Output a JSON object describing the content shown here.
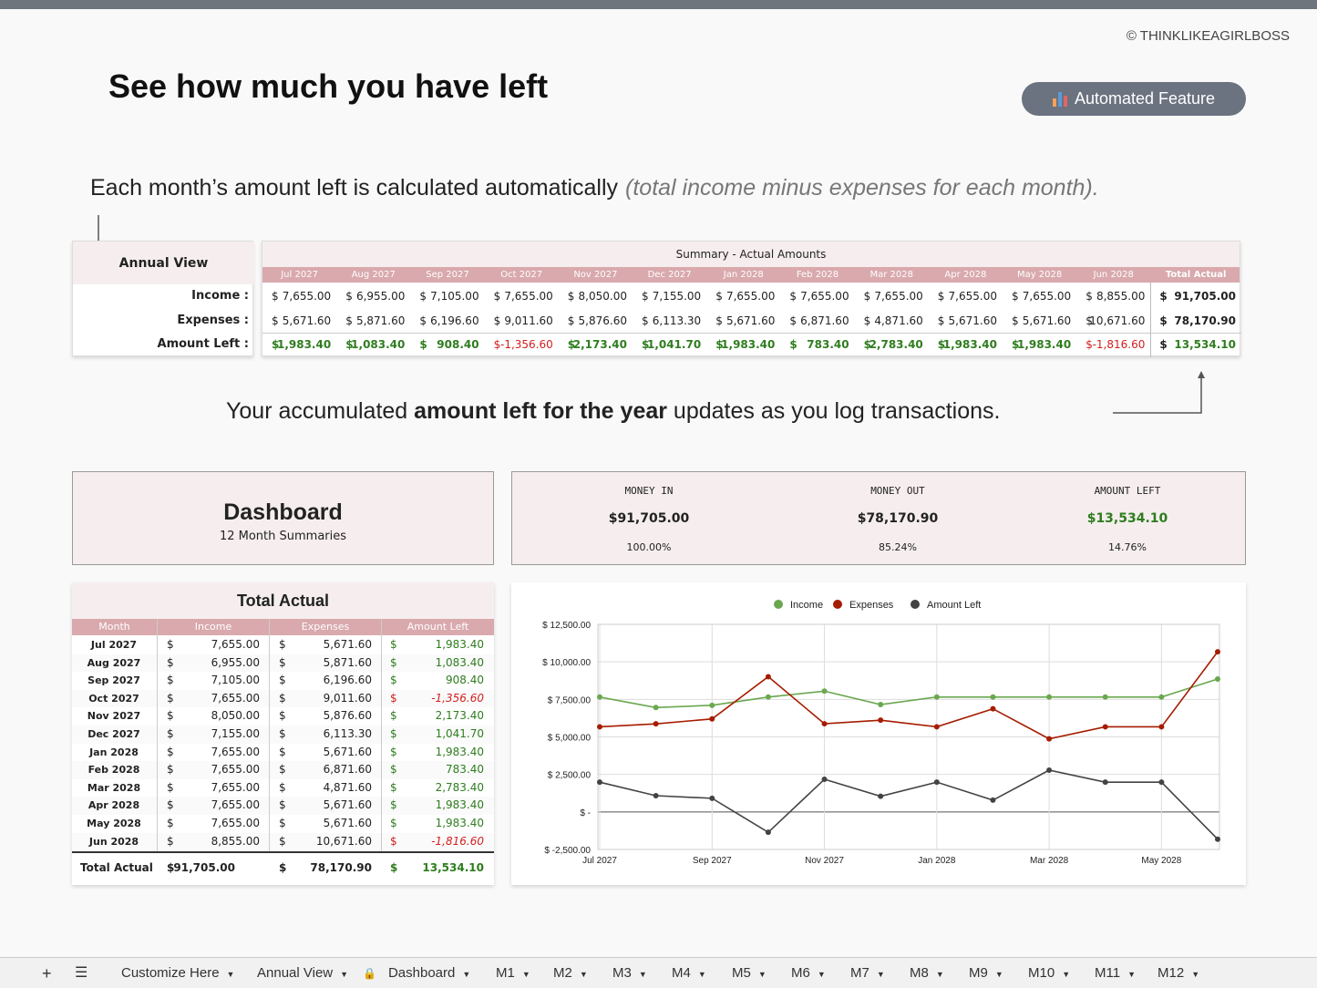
{
  "copyright": "© THINKLIKEAGIRLBOSS",
  "title": "See how much you have left",
  "badge": {
    "label": "Automated Feature",
    "icon": "bar-chart-icon"
  },
  "description": {
    "main": "Each month’s amount left is calculated automatically",
    "note": "(total income minus expenses for each month)."
  },
  "accumulated": {
    "pre": "Your accumulated ",
    "bold": "amount left for the year",
    "post": " updates as you log transactions."
  },
  "annual": {
    "header": "Annual View",
    "rows": [
      "Income :",
      "Expenses :",
      "Amount Left :"
    ],
    "summary_title": "Summary - Actual Amounts",
    "months": [
      "Jul 2027",
      "Aug 2027",
      "Sep 2027",
      "Oct 2027",
      "Nov 2027",
      "Dec 2027",
      "Jan 2028",
      "Feb 2028",
      "Mar 2028",
      "Apr 2028",
      "May 2028",
      "Jun 2028"
    ],
    "total_label": "Total Actual",
    "income": [
      "7,655.00",
      "6,955.00",
      "7,105.00",
      "7,655.00",
      "8,050.00",
      "7,155.00",
      "7,655.00",
      "7,655.00",
      "7,655.00",
      "7,655.00",
      "7,655.00",
      "8,855.00"
    ],
    "expenses": [
      "5,671.60",
      "5,871.60",
      "6,196.60",
      "9,011.60",
      "5,876.60",
      "6,113.30",
      "5,671.60",
      "6,871.60",
      "4,871.60",
      "5,671.60",
      "5,671.60",
      "10,671.60"
    ],
    "left": [
      "1,983.40",
      "1,083.40",
      "908.40",
      "-1,356.60",
      "2,173.40",
      "1,041.70",
      "1,983.40",
      "783.40",
      "2,783.40",
      "1,983.40",
      "1,983.40",
      "-1,816.60"
    ],
    "total_income": "91,705.00",
    "total_expenses": "78,170.90",
    "total_left": "13,534.10"
  },
  "dashboard": {
    "title": "Dashboard",
    "subtitle": "12 Month Summaries",
    "kpis": [
      {
        "label": "MONEY IN",
        "value": "$91,705.00",
        "pct": "100.00%"
      },
      {
        "label": "MONEY OUT",
        "value": "$78,170.90",
        "pct": "85.24%"
      },
      {
        "label": "AMOUNT LEFT",
        "value": "$13,534.10",
        "pct": "14.76%"
      }
    ],
    "table_title": "Total Actual",
    "columns": [
      "Month",
      "Income",
      "Expenses",
      "Amount Left"
    ],
    "rows": [
      {
        "m": "Jul 2027",
        "i": "7,655.00",
        "e": "5,671.60",
        "l": "1,983.40"
      },
      {
        "m": "Aug 2027",
        "i": "6,955.00",
        "e": "5,871.60",
        "l": "1,083.40"
      },
      {
        "m": "Sep 2027",
        "i": "7,105.00",
        "e": "6,196.60",
        "l": "908.40"
      },
      {
        "m": "Oct 2027",
        "i": "7,655.00",
        "e": "9,011.60",
        "l": "-1,356.60"
      },
      {
        "m": "Nov 2027",
        "i": "8,050.00",
        "e": "5,876.60",
        "l": "2,173.40"
      },
      {
        "m": "Dec 2027",
        "i": "7,155.00",
        "e": "6,113.30",
        "l": "1,041.70"
      },
      {
        "m": "Jan 2028",
        "i": "7,655.00",
        "e": "5,671.60",
        "l": "1,983.40"
      },
      {
        "m": "Feb 2028",
        "i": "7,655.00",
        "e": "6,871.60",
        "l": "783.40"
      },
      {
        "m": "Mar 2028",
        "i": "7,655.00",
        "e": "4,871.60",
        "l": "2,783.40"
      },
      {
        "m": "Apr 2028",
        "i": "7,655.00",
        "e": "5,671.60",
        "l": "1,983.40"
      },
      {
        "m": "May 2028",
        "i": "7,655.00",
        "e": "5,671.60",
        "l": "1,983.40"
      },
      {
        "m": "Jun 2028",
        "i": "8,855.00",
        "e": "10,671.60",
        "l": "-1,816.60"
      }
    ],
    "total_row": {
      "label": "Total Actual",
      "i": "91,705.00",
      "e": "78,170.90",
      "l": "13,534.10"
    },
    "currency": "$"
  },
  "chart_data": {
    "type": "line",
    "title": "",
    "xlabel": "",
    "ylabel": "",
    "x": [
      "Jul 2027",
      "Aug 2027",
      "Sep 2027",
      "Oct 2027",
      "Nov 2027",
      "Dec 2027",
      "Jan 2028",
      "Feb 2028",
      "Mar 2028",
      "Apr 2028",
      "May 2028",
      "Jun 2028"
    ],
    "x_tick_labels": [
      "Jul 2027",
      "Sep 2027",
      "Nov 2027",
      "Jan 2028",
      "Mar 2028",
      "May 2028"
    ],
    "y_tick_labels": [
      "$ 12,500.00",
      "$ 10,000.00",
      "$ 7,500.00",
      "$ 5,000.00",
      "$ 2,500.00",
      "$ -",
      "$ -2,500.00"
    ],
    "ylim": [
      -2500,
      12500
    ],
    "legend": "top",
    "grid": true,
    "series": [
      {
        "name": "Income",
        "color": "#6aa84f",
        "values": [
          7655,
          6955,
          7105,
          7655,
          8050,
          7155,
          7655,
          7655,
          7655,
          7655,
          7655,
          8855
        ]
      },
      {
        "name": "Expenses",
        "color": "#a61c00",
        "values": [
          5671.6,
          5871.6,
          6196.6,
          9011.6,
          5876.6,
          6113.3,
          5671.6,
          6871.6,
          4871.6,
          5671.6,
          5671.6,
          10671.6
        ]
      },
      {
        "name": "Amount Left",
        "color": "#434343",
        "values": [
          1983.4,
          1083.4,
          908.4,
          -1356.6,
          2173.4,
          1041.7,
          1983.4,
          783.4,
          2783.4,
          1983.4,
          1983.4,
          -1816.6
        ]
      }
    ]
  },
  "tabs": {
    "items": [
      "Customize Here",
      "Annual View",
      "Dashboard",
      "M1",
      "M2",
      "M3",
      "M4",
      "M5",
      "M6",
      "M7",
      "M8",
      "M9",
      "M10",
      "M11",
      "M12"
    ],
    "locked": "Dashboard"
  }
}
